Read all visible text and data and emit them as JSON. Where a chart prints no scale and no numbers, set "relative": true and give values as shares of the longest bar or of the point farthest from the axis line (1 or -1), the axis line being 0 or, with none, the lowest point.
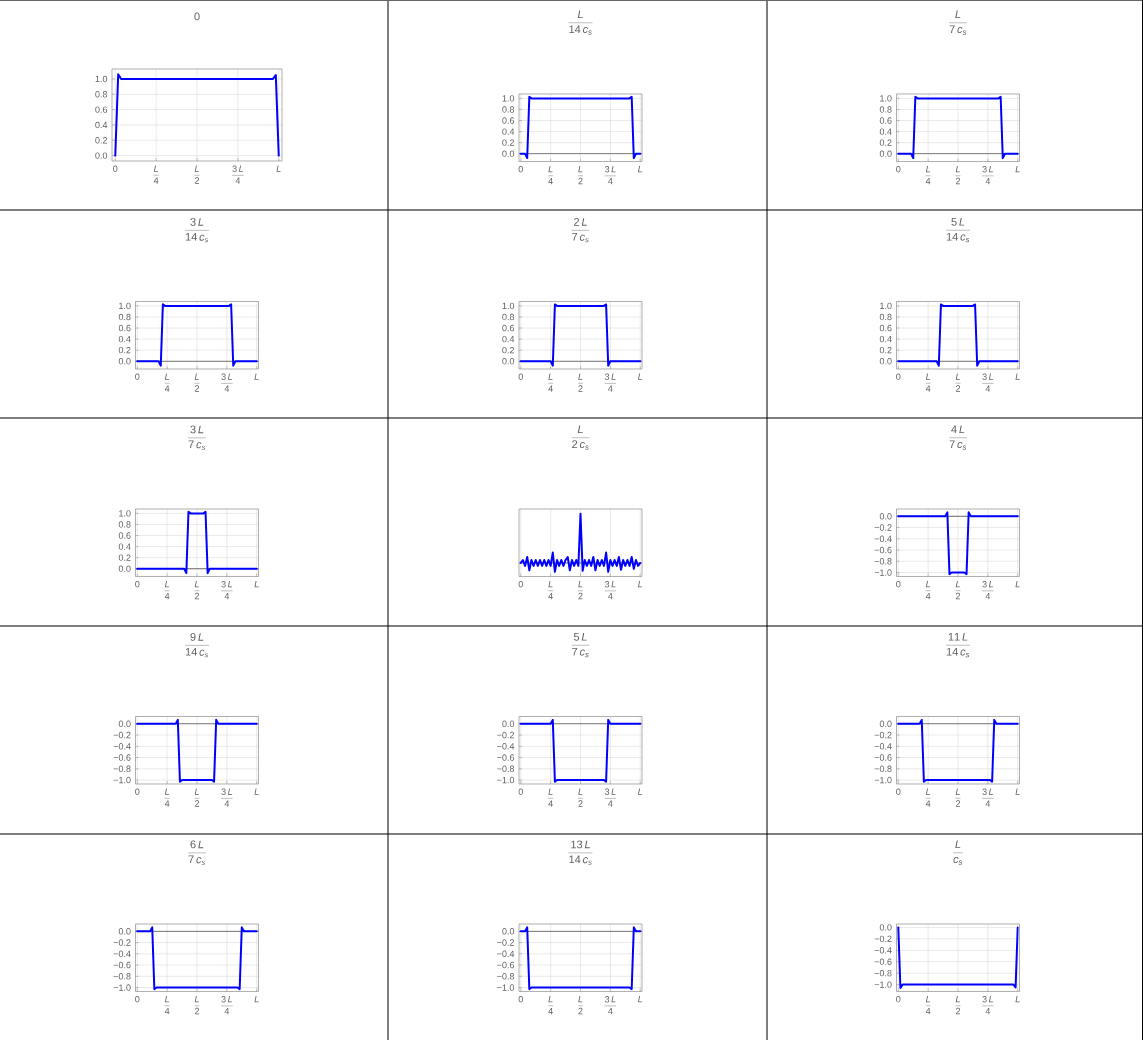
{
  "chart_data": [
    {
      "type": "line",
      "title": "0",
      "categories": [
        "0",
        null,
        null,
        null,
        null,
        null,
        null,
        null,
        null,
        null,
        null,
        null,
        null,
        null,
        "\\frac{L}{4}",
        null,
        null,
        null,
        null,
        null,
        null,
        null,
        null,
        null,
        null,
        null,
        null,
        null,
        "\\frac{L}{2}",
        null,
        null,
        null,
        null,
        null,
        null,
        null,
        null,
        null,
        null,
        null,
        null,
        null,
        "\\frac{3\\,L}{4}",
        null,
        null,
        null,
        null,
        null,
        null,
        null,
        null,
        null,
        null,
        null,
        null,
        null,
        "L"
      ],
      "values": [
        0,
        1.06,
        1,
        1,
        1,
        1,
        1,
        1,
        1,
        1,
        1,
        1,
        1,
        1,
        1,
        1,
        1,
        1,
        1,
        1,
        1,
        1,
        1,
        1,
        1,
        1,
        1,
        1,
        1,
        1,
        1,
        1,
        1,
        1,
        1,
        1,
        1,
        1,
        1,
        1,
        1,
        1,
        1,
        1,
        1,
        1,
        1,
        1,
        1,
        1,
        1,
        1,
        1,
        1,
        1,
        1.05,
        0
      ],
      "color": "#0000ff",
      "ylim": [
        -0.07,
        1.13
      ],
      "yticks": [
        {
          "value": 0,
          "label": "0.0"
        },
        0.2,
        0.4,
        0.6,
        0.8,
        {
          "value": 1,
          "label": "1.0"
        }
      ],
      "grid": true
    },
    {
      "type": "line",
      "title": "\\frac{L}{14\\,c_{s}}",
      "categories": [
        "0",
        null,
        null,
        null,
        null,
        null,
        null,
        null,
        null,
        null,
        null,
        null,
        null,
        null,
        "\\frac{L}{4}",
        null,
        null,
        null,
        null,
        null,
        null,
        null,
        null,
        null,
        null,
        null,
        null,
        null,
        "\\frac{L}{2}",
        null,
        null,
        null,
        null,
        null,
        null,
        null,
        null,
        null,
        null,
        null,
        null,
        null,
        "\\frac{3\\,L}{4}",
        null,
        null,
        null,
        null,
        null,
        null,
        null,
        null,
        null,
        null,
        null,
        null,
        null,
        "L"
      ],
      "values": [
        0,
        0,
        0,
        -0.08,
        1.03,
        1,
        1,
        1,
        1,
        1,
        1,
        1,
        1,
        1,
        1,
        1,
        1,
        1,
        1,
        1,
        1,
        1,
        1,
        1,
        1,
        1,
        1,
        1,
        1,
        1,
        1,
        1,
        1,
        1,
        1,
        1,
        1,
        1,
        1,
        1,
        1,
        1,
        1,
        1,
        1,
        1,
        1,
        1,
        1,
        1,
        1,
        1,
        1.03,
        -0.08,
        0,
        0,
        0
      ],
      "color": "#0000ff",
      "ylim": [
        -0.14,
        1.08
      ],
      "yticks": [
        {
          "value": 0,
          "label": "0.0"
        },
        0.2,
        0.4,
        0.6,
        0.8,
        {
          "value": 1,
          "label": "1.0"
        }
      ],
      "grid": true,
      "ref_lines": [
        {
          "axis": "y",
          "value": 0,
          "color": "#4d4d4d"
        }
      ]
    },
    {
      "type": "line",
      "title": "\\frac{L}{7\\,c_{s}}",
      "categories": [
        "0",
        null,
        null,
        null,
        null,
        null,
        null,
        null,
        null,
        null,
        null,
        null,
        null,
        null,
        "\\frac{L}{4}",
        null,
        null,
        null,
        null,
        null,
        null,
        null,
        null,
        null,
        null,
        null,
        null,
        null,
        "\\frac{L}{2}",
        null,
        null,
        null,
        null,
        null,
        null,
        null,
        null,
        null,
        null,
        null,
        null,
        null,
        "\\frac{3\\,L}{4}",
        null,
        null,
        null,
        null,
        null,
        null,
        null,
        null,
        null,
        null,
        null,
        null,
        null,
        "L"
      ],
      "values": [
        0,
        0,
        0,
        0,
        0,
        0,
        0,
        -0.08,
        1.03,
        1,
        1,
        1,
        1,
        1,
        1,
        1,
        1,
        1,
        1,
        1,
        1,
        1,
        1,
        1,
        1,
        1,
        1,
        1,
        1,
        1,
        1,
        1,
        1,
        1,
        1,
        1,
        1,
        1,
        1,
        1,
        1,
        1,
        1,
        1,
        1,
        1,
        1,
        1,
        1.03,
        -0.08,
        0,
        0,
        0,
        0,
        0,
        0,
        0
      ],
      "color": "#0000ff",
      "ylim": [
        -0.14,
        1.08
      ],
      "yticks": [
        {
          "value": 0,
          "label": "0.0"
        },
        0.2,
        0.4,
        0.6,
        0.8,
        {
          "value": 1,
          "label": "1.0"
        }
      ],
      "grid": true,
      "ref_lines": [
        {
          "axis": "y",
          "value": 0,
          "color": "#4d4d4d"
        }
      ]
    },
    {
      "type": "line",
      "title": "\\frac{3\\,L}{14\\,c_{s}}",
      "categories": [
        "0",
        null,
        null,
        null,
        null,
        null,
        null,
        null,
        null,
        null,
        null,
        null,
        null,
        null,
        "\\frac{L}{4}",
        null,
        null,
        null,
        null,
        null,
        null,
        null,
        null,
        null,
        null,
        null,
        null,
        null,
        "\\frac{L}{2}",
        null,
        null,
        null,
        null,
        null,
        null,
        null,
        null,
        null,
        null,
        null,
        null,
        null,
        "\\frac{3\\,L}{4}",
        null,
        null,
        null,
        null,
        null,
        null,
        null,
        null,
        null,
        null,
        null,
        null,
        null,
        "L"
      ],
      "values": [
        0,
        0,
        0,
        0,
        0,
        0,
        0,
        0,
        0,
        0,
        0,
        -0.08,
        1.03,
        1,
        1,
        1,
        1,
        1,
        1,
        1,
        1,
        1,
        1,
        1,
        1,
        1,
        1,
        1,
        1,
        1,
        1,
        1,
        1,
        1,
        1,
        1,
        1,
        1,
        1,
        1,
        1,
        1,
        1,
        1,
        1.03,
        -0.08,
        0,
        0,
        0,
        0,
        0,
        0,
        0,
        0,
        0,
        0,
        0
      ],
      "color": "#0000ff",
      "ylim": [
        -0.14,
        1.08
      ],
      "yticks": [
        {
          "value": 0,
          "label": "0.0"
        },
        0.2,
        0.4,
        0.6,
        0.8,
        {
          "value": 1,
          "label": "1.0"
        }
      ],
      "grid": true,
      "ref_lines": [
        {
          "axis": "y",
          "value": 0,
          "color": "#4d4d4d"
        }
      ]
    },
    {
      "type": "line",
      "title": "\\frac{2\\,L}{7\\,c_{s}}",
      "categories": [
        "0",
        null,
        null,
        null,
        null,
        null,
        null,
        null,
        null,
        null,
        null,
        null,
        null,
        null,
        "\\frac{L}{4}",
        null,
        null,
        null,
        null,
        null,
        null,
        null,
        null,
        null,
        null,
        null,
        null,
        null,
        "\\frac{L}{2}",
        null,
        null,
        null,
        null,
        null,
        null,
        null,
        null,
        null,
        null,
        null,
        null,
        null,
        "\\frac{3\\,L}{4}",
        null,
        null,
        null,
        null,
        null,
        null,
        null,
        null,
        null,
        null,
        null,
        null,
        null,
        "L"
      ],
      "values": [
        0,
        0,
        0,
        0,
        0,
        0,
        0,
        0,
        0,
        0,
        0,
        0,
        0,
        0,
        0,
        -0.08,
        1.03,
        1,
        1,
        1,
        1,
        1,
        1,
        1,
        1,
        1,
        1,
        1,
        1,
        1,
        1,
        1,
        1,
        1,
        1,
        1,
        1,
        1,
        1,
        1,
        1.03,
        -0.08,
        0,
        0,
        0,
        0,
        0,
        0,
        0,
        0,
        0,
        0,
        0,
        0,
        0,
        0,
        0
      ],
      "color": "#0000ff",
      "ylim": [
        -0.14,
        1.08
      ],
      "yticks": [
        {
          "value": 0,
          "label": "0.0"
        },
        0.2,
        0.4,
        0.6,
        0.8,
        {
          "value": 1,
          "label": "1.0"
        }
      ],
      "grid": true,
      "ref_lines": [
        {
          "axis": "y",
          "value": 0,
          "color": "#4d4d4d"
        }
      ]
    },
    {
      "type": "line",
      "title": "\\frac{5\\,L}{14\\,c_{s}}",
      "categories": [
        "0",
        null,
        null,
        null,
        null,
        null,
        null,
        null,
        null,
        null,
        null,
        null,
        null,
        null,
        "\\frac{L}{4}",
        null,
        null,
        null,
        null,
        null,
        null,
        null,
        null,
        null,
        null,
        null,
        null,
        null,
        "\\frac{L}{2}",
        null,
        null,
        null,
        null,
        null,
        null,
        null,
        null,
        null,
        null,
        null,
        null,
        null,
        "\\frac{3\\,L}{4}",
        null,
        null,
        null,
        null,
        null,
        null,
        null,
        null,
        null,
        null,
        null,
        null,
        null,
        "L"
      ],
      "values": [
        0,
        0,
        0,
        0,
        0,
        0,
        0,
        0,
        0,
        0,
        0,
        0,
        0,
        0,
        0,
        0,
        0,
        0,
        0,
        -0.08,
        1.03,
        1,
        1,
        1,
        1,
        1,
        1,
        1,
        1,
        1,
        1,
        1,
        1,
        1,
        1,
        1,
        1.03,
        -0.08,
        0,
        0,
        0,
        0,
        0,
        0,
        0,
        0,
        0,
        0,
        0,
        0,
        0,
        0,
        0,
        0,
        0,
        0,
        0
      ],
      "color": "#0000ff",
      "ylim": [
        -0.14,
        1.08
      ],
      "yticks": [
        {
          "value": 0,
          "label": "0.0"
        },
        0.2,
        0.4,
        0.6,
        0.8,
        {
          "value": 1,
          "label": "1.0"
        }
      ],
      "grid": true,
      "ref_lines": [
        {
          "axis": "y",
          "value": 0,
          "color": "#4d4d4d"
        }
      ]
    },
    {
      "type": "line",
      "title": "\\frac{3\\,L}{7\\,c_{s}}",
      "categories": [
        "0",
        null,
        null,
        null,
        null,
        null,
        null,
        null,
        null,
        null,
        null,
        null,
        null,
        null,
        "\\frac{L}{4}",
        null,
        null,
        null,
        null,
        null,
        null,
        null,
        null,
        null,
        null,
        null,
        null,
        null,
        "\\frac{L}{2}",
        null,
        null,
        null,
        null,
        null,
        null,
        null,
        null,
        null,
        null,
        null,
        null,
        null,
        "\\frac{3\\,L}{4}",
        null,
        null,
        null,
        null,
        null,
        null,
        null,
        null,
        null,
        null,
        null,
        null,
        null,
        "L"
      ],
      "values": [
        0,
        0,
        0,
        0,
        0,
        0,
        0,
        0,
        0,
        0,
        0,
        0,
        0,
        0,
        0,
        0,
        0,
        0,
        0,
        0,
        0,
        0,
        0,
        -0.08,
        1.03,
        1,
        1,
        1,
        1,
        1,
        1,
        1,
        1.03,
        -0.08,
        0,
        0,
        0,
        0,
        0,
        0,
        0,
        0,
        0,
        0,
        0,
        0,
        0,
        0,
        0,
        0,
        0,
        0,
        0,
        0,
        0,
        0,
        0
      ],
      "color": "#0000ff",
      "ylim": [
        -0.14,
        1.08
      ],
      "yticks": [
        {
          "value": 0,
          "label": "0.0"
        },
        0.2,
        0.4,
        0.6,
        0.8,
        {
          "value": 1,
          "label": "1.0"
        }
      ],
      "grid": true,
      "ref_lines": [
        {
          "axis": "y",
          "value": 0,
          "color": "#4d4d4d"
        }
      ]
    },
    {
      "type": "line",
      "title": "\\frac{L}{2\\,c_{s}}",
      "categories": [
        "0",
        null,
        null,
        null,
        null,
        null,
        null,
        null,
        null,
        null,
        null,
        null,
        null,
        null,
        "\\frac{L}{4}",
        null,
        null,
        null,
        null,
        null,
        null,
        null,
        null,
        null,
        null,
        null,
        null,
        null,
        "\\frac{L}{2}",
        null,
        null,
        null,
        null,
        null,
        null,
        null,
        null,
        null,
        null,
        null,
        null,
        null,
        "\\frac{3\\,L}{4}",
        null,
        null,
        null,
        null,
        null,
        null,
        null,
        null,
        null,
        null,
        null,
        null,
        null,
        "L"
      ],
      "values": [
        0,
        0.06,
        -0.06,
        0.12,
        -0.15,
        0.06,
        -0.06,
        0.06,
        -0.06,
        0.06,
        -0.06,
        0.06,
        -0.06,
        0.06,
        -0.06,
        0.21,
        -0.18,
        0.06,
        -0.06,
        0.06,
        -0.06,
        0.06,
        0.12,
        -0.15,
        0.06,
        -0.06,
        0.06,
        -0.06,
        1,
        -0.16,
        0.06,
        -0.06,
        0.06,
        -0.06,
        0.12,
        -0.15,
        0.06,
        -0.06,
        0.06,
        -0.06,
        0.21,
        -0.18,
        0.06,
        -0.06,
        0.06,
        -0.06,
        0.12,
        -0.14,
        0.06,
        -0.06,
        0.06,
        -0.06,
        0.12,
        -0.12,
        0.06,
        -0.06,
        0
      ],
      "color": "#0000ff",
      "relative": true,
      "grid": "x",
      "ref_lines": [
        {
          "axis": "y",
          "value": 0,
          "color": "#4d4d4d"
        }
      ]
    },
    {
      "type": "line",
      "title": "\\frac{4\\,L}{7\\,c_{s}}",
      "categories": [
        "0",
        null,
        null,
        null,
        null,
        null,
        null,
        null,
        null,
        null,
        null,
        null,
        null,
        null,
        "\\frac{L}{4}",
        null,
        null,
        null,
        null,
        null,
        null,
        null,
        null,
        null,
        null,
        null,
        null,
        null,
        "\\frac{L}{2}",
        null,
        null,
        null,
        null,
        null,
        null,
        null,
        null,
        null,
        null,
        null,
        null,
        null,
        "\\frac{3\\,L}{4}",
        null,
        null,
        null,
        null,
        null,
        null,
        null,
        null,
        null,
        null,
        null,
        null,
        null,
        "L"
      ],
      "values": [
        0,
        0,
        0,
        0,
        0,
        0,
        0,
        0,
        0,
        0,
        0,
        0,
        0,
        0,
        0,
        0,
        0,
        0,
        0,
        0,
        0,
        0,
        0,
        0.07,
        -1.03,
        -1,
        -1,
        -1,
        -1,
        -1,
        -1,
        -1,
        -1.03,
        0.07,
        0,
        0,
        0,
        0,
        0,
        0,
        0,
        0,
        0,
        0,
        0,
        0,
        0,
        0,
        0,
        0,
        0,
        0,
        0,
        0,
        0,
        0,
        0
      ],
      "color": "#0000ff",
      "ylim": [
        -1.07,
        0.13
      ],
      "yticks": [
        {
          "value": 0,
          "label": "0.0"
        },
        {
          "value": -0.2,
          "label": "−0.2"
        },
        {
          "value": -0.4,
          "label": "−0.4"
        },
        {
          "value": -0.6,
          "label": "−0.6"
        },
        {
          "value": -0.8,
          "label": "−0.8"
        },
        {
          "value": -1,
          "label": "−1.0"
        }
      ],
      "grid": true,
      "ref_lines": [
        {
          "axis": "y",
          "value": 0,
          "color": "#4d4d4d"
        }
      ]
    },
    {
      "type": "line",
      "title": "\\frac{9\\,L}{14\\,c_{s}}",
      "categories": [
        "0",
        null,
        null,
        null,
        null,
        null,
        null,
        null,
        null,
        null,
        null,
        null,
        null,
        null,
        "\\frac{L}{4}",
        null,
        null,
        null,
        null,
        null,
        null,
        null,
        null,
        null,
        null,
        null,
        null,
        null,
        "\\frac{L}{2}",
        null,
        null,
        null,
        null,
        null,
        null,
        null,
        null,
        null,
        null,
        null,
        null,
        null,
        "\\frac{3\\,L}{4}",
        null,
        null,
        null,
        null,
        null,
        null,
        null,
        null,
        null,
        null,
        null,
        null,
        null,
        "L"
      ],
      "values": [
        0,
        0,
        0,
        0,
        0,
        0,
        0,
        0,
        0,
        0,
        0,
        0,
        0,
        0,
        0,
        0,
        0,
        0,
        0,
        0.07,
        -1.03,
        -1,
        -1,
        -1,
        -1,
        -1,
        -1,
        -1,
        -1,
        -1,
        -1,
        -1,
        -1,
        -1,
        -1,
        -1,
        -1.03,
        0.07,
        0,
        0,
        0,
        0,
        0,
        0,
        0,
        0,
        0,
        0,
        0,
        0,
        0,
        0,
        0,
        0,
        0,
        0,
        0
      ],
      "color": "#0000ff",
      "ylim": [
        -1.07,
        0.13
      ],
      "yticks": [
        {
          "value": 0,
          "label": "0.0"
        },
        {
          "value": -0.2,
          "label": "−0.2"
        },
        {
          "value": -0.4,
          "label": "−0.4"
        },
        {
          "value": -0.6,
          "label": "−0.6"
        },
        {
          "value": -0.8,
          "label": "−0.8"
        },
        {
          "value": -1,
          "label": "−1.0"
        }
      ],
      "grid": true,
      "ref_lines": [
        {
          "axis": "y",
          "value": 0,
          "color": "#4d4d4d"
        }
      ]
    },
    {
      "type": "line",
      "title": "\\frac{5\\,L}{7\\,c_{s}}",
      "categories": [
        "0",
        null,
        null,
        null,
        null,
        null,
        null,
        null,
        null,
        null,
        null,
        null,
        null,
        null,
        "\\frac{L}{4}",
        null,
        null,
        null,
        null,
        null,
        null,
        null,
        null,
        null,
        null,
        null,
        null,
        null,
        "\\frac{L}{2}",
        null,
        null,
        null,
        null,
        null,
        null,
        null,
        null,
        null,
        null,
        null,
        null,
        null,
        "\\frac{3\\,L}{4}",
        null,
        null,
        null,
        null,
        null,
        null,
        null,
        null,
        null,
        null,
        null,
        null,
        null,
        "L"
      ],
      "values": [
        0,
        0,
        0,
        0,
        0,
        0,
        0,
        0,
        0,
        0,
        0,
        0,
        0,
        0,
        0,
        0.07,
        -1.03,
        -1,
        -1,
        -1,
        -1,
        -1,
        -1,
        -1,
        -1,
        -1,
        -1,
        -1,
        -1,
        -1,
        -1,
        -1,
        -1,
        -1,
        -1,
        -1,
        -1,
        -1,
        -1,
        -1,
        -1.03,
        0.07,
        0,
        0,
        0,
        0,
        0,
        0,
        0,
        0,
        0,
        0,
        0,
        0,
        0,
        0,
        0
      ],
      "color": "#0000ff",
      "ylim": [
        -1.07,
        0.13
      ],
      "yticks": [
        {
          "value": 0,
          "label": "0.0"
        },
        {
          "value": -0.2,
          "label": "−0.2"
        },
        {
          "value": -0.4,
          "label": "−0.4"
        },
        {
          "value": -0.6,
          "label": "−0.6"
        },
        {
          "value": -0.8,
          "label": "−0.8"
        },
        {
          "value": -1,
          "label": "−1.0"
        }
      ],
      "grid": true,
      "ref_lines": [
        {
          "axis": "y",
          "value": 0,
          "color": "#4d4d4d"
        }
      ]
    },
    {
      "type": "line",
      "title": "\\frac{11\\,L}{14\\,c_{s}}",
      "categories": [
        "0",
        null,
        null,
        null,
        null,
        null,
        null,
        null,
        null,
        null,
        null,
        null,
        null,
        null,
        "\\frac{L}{4}",
        null,
        null,
        null,
        null,
        null,
        null,
        null,
        null,
        null,
        null,
        null,
        null,
        null,
        "\\frac{L}{2}",
        null,
        null,
        null,
        null,
        null,
        null,
        null,
        null,
        null,
        null,
        null,
        null,
        null,
        "\\frac{3\\,L}{4}",
        null,
        null,
        null,
        null,
        null,
        null,
        null,
        null,
        null,
        null,
        null,
        null,
        null,
        "L"
      ],
      "values": [
        0,
        0,
        0,
        0,
        0,
        0,
        0,
        0,
        0,
        0,
        0,
        0.07,
        -1.03,
        -1,
        -1,
        -1,
        -1,
        -1,
        -1,
        -1,
        -1,
        -1,
        -1,
        -1,
        -1,
        -1,
        -1,
        -1,
        -1,
        -1,
        -1,
        -1,
        -1,
        -1,
        -1,
        -1,
        -1,
        -1,
        -1,
        -1,
        -1,
        -1,
        -1,
        -1,
        -1.03,
        0.07,
        0,
        0,
        0,
        0,
        0,
        0,
        0,
        0,
        0,
        0,
        0
      ],
      "color": "#0000ff",
      "ylim": [
        -1.07,
        0.13
      ],
      "yticks": [
        {
          "value": 0,
          "label": "0.0"
        },
        {
          "value": -0.2,
          "label": "−0.2"
        },
        {
          "value": -0.4,
          "label": "−0.4"
        },
        {
          "value": -0.6,
          "label": "−0.6"
        },
        {
          "value": -0.8,
          "label": "−0.8"
        },
        {
          "value": -1,
          "label": "−1.0"
        }
      ],
      "grid": true,
      "ref_lines": [
        {
          "axis": "y",
          "value": 0,
          "color": "#4d4d4d"
        }
      ]
    },
    {
      "type": "line",
      "title": "\\frac{6\\,L}{7\\,c_{s}}",
      "categories": [
        "0",
        null,
        null,
        null,
        null,
        null,
        null,
        null,
        null,
        null,
        null,
        null,
        null,
        null,
        "\\frac{L}{4}",
        null,
        null,
        null,
        null,
        null,
        null,
        null,
        null,
        null,
        null,
        null,
        null,
        null,
        "\\frac{L}{2}",
        null,
        null,
        null,
        null,
        null,
        null,
        null,
        null,
        null,
        null,
        null,
        null,
        null,
        "\\frac{3\\,L}{4}",
        null,
        null,
        null,
        null,
        null,
        null,
        null,
        null,
        null,
        null,
        null,
        null,
        null,
        "L"
      ],
      "values": [
        0,
        0,
        0,
        0,
        0,
        0,
        0,
        0.07,
        -1.03,
        -1,
        -1,
        -1,
        -1,
        -1,
        -1,
        -1,
        -1,
        -1,
        -1,
        -1,
        -1,
        -1,
        -1,
        -1,
        -1,
        -1,
        -1,
        -1,
        -1,
        -1,
        -1,
        -1,
        -1,
        -1,
        -1,
        -1,
        -1,
        -1,
        -1,
        -1,
        -1,
        -1,
        -1,
        -1,
        -1,
        -1,
        -1,
        -1,
        -1.03,
        0.07,
        0,
        0,
        0,
        0,
        0,
        0,
        0
      ],
      "color": "#0000ff",
      "ylim": [
        -1.07,
        0.13
      ],
      "yticks": [
        {
          "value": 0,
          "label": "0.0"
        },
        {
          "value": -0.2,
          "label": "−0.2"
        },
        {
          "value": -0.4,
          "label": "−0.4"
        },
        {
          "value": -0.6,
          "label": "−0.6"
        },
        {
          "value": -0.8,
          "label": "−0.8"
        },
        {
          "value": -1,
          "label": "−1.0"
        }
      ],
      "grid": true,
      "ref_lines": [
        {
          "axis": "y",
          "value": 0,
          "color": "#4d4d4d"
        }
      ]
    },
    {
      "type": "line",
      "title": "\\frac{13\\,L}{14\\,c_{s}}",
      "categories": [
        "0",
        null,
        null,
        null,
        null,
        null,
        null,
        null,
        null,
        null,
        null,
        null,
        null,
        null,
        "\\frac{L}{4}",
        null,
        null,
        null,
        null,
        null,
        null,
        null,
        null,
        null,
        null,
        null,
        null,
        null,
        "\\frac{L}{2}",
        null,
        null,
        null,
        null,
        null,
        null,
        null,
        null,
        null,
        null,
        null,
        null,
        null,
        "\\frac{3\\,L}{4}",
        null,
        null,
        null,
        null,
        null,
        null,
        null,
        null,
        null,
        null,
        null,
        null,
        null,
        "L"
      ],
      "values": [
        0,
        0,
        0,
        0.07,
        -1.03,
        -1,
        -1,
        -1,
        -1,
        -1,
        -1,
        -1,
        -1,
        -1,
        -1,
        -1,
        -1,
        -1,
        -1,
        -1,
        -1,
        -1,
        -1,
        -1,
        -1,
        -1,
        -1,
        -1,
        -1,
        -1,
        -1,
        -1,
        -1,
        -1,
        -1,
        -1,
        -1,
        -1,
        -1,
        -1,
        -1,
        -1,
        -1,
        -1,
        -1,
        -1,
        -1,
        -1,
        -1,
        -1,
        -1,
        -1,
        -1.03,
        0.07,
        0,
        0,
        0
      ],
      "color": "#0000ff",
      "ylim": [
        -1.07,
        0.13
      ],
      "yticks": [
        {
          "value": 0,
          "label": "0.0"
        },
        {
          "value": -0.2,
          "label": "−0.2"
        },
        {
          "value": -0.4,
          "label": "−0.4"
        },
        {
          "value": -0.6,
          "label": "−0.6"
        },
        {
          "value": -0.8,
          "label": "−0.8"
        },
        {
          "value": -1,
          "label": "−1.0"
        }
      ],
      "grid": true,
      "ref_lines": [
        {
          "axis": "y",
          "value": 0,
          "color": "#4d4d4d"
        }
      ]
    },
    {
      "type": "line",
      "title": "\\frac{L}{c_{s}}",
      "categories": [
        "0",
        null,
        null,
        null,
        null,
        null,
        null,
        null,
        null,
        null,
        null,
        null,
        null,
        null,
        "\\frac{L}{4}",
        null,
        null,
        null,
        null,
        null,
        null,
        null,
        null,
        null,
        null,
        null,
        null,
        null,
        "\\frac{L}{2}",
        null,
        null,
        null,
        null,
        null,
        null,
        null,
        null,
        null,
        null,
        null,
        null,
        null,
        "\\frac{3\\,L}{4}",
        null,
        null,
        null,
        null,
        null,
        null,
        null,
        null,
        null,
        null,
        null,
        null,
        null,
        "L"
      ],
      "values": [
        0,
        -1.06,
        -1,
        -1,
        -1,
        -1,
        -1,
        -1,
        -1,
        -1,
        -1,
        -1,
        -1,
        -1,
        -1,
        -1,
        -1,
        -1,
        -1,
        -1,
        -1,
        -1,
        -1,
        -1,
        -1,
        -1,
        -1,
        -1,
        -1,
        -1,
        -1,
        -1,
        -1,
        -1,
        -1,
        -1,
        -1,
        -1,
        -1,
        -1,
        -1,
        -1,
        -1,
        -1,
        -1,
        -1,
        -1,
        -1,
        -1,
        -1,
        -1,
        -1,
        -1,
        -1,
        -1,
        -1.05,
        0
      ],
      "color": "#0000ff",
      "ylim": [
        -1.12,
        0.06
      ],
      "yticks": [
        {
          "value": 0,
          "label": "0.0"
        },
        {
          "value": -0.2,
          "label": "−0.2"
        },
        {
          "value": -0.4,
          "label": "−0.4"
        },
        {
          "value": -0.6,
          "label": "−0.6"
        },
        {
          "value": -0.8,
          "label": "−0.8"
        },
        {
          "value": -1,
          "label": "−1.0"
        }
      ],
      "grid": true
    }
  ]
}
